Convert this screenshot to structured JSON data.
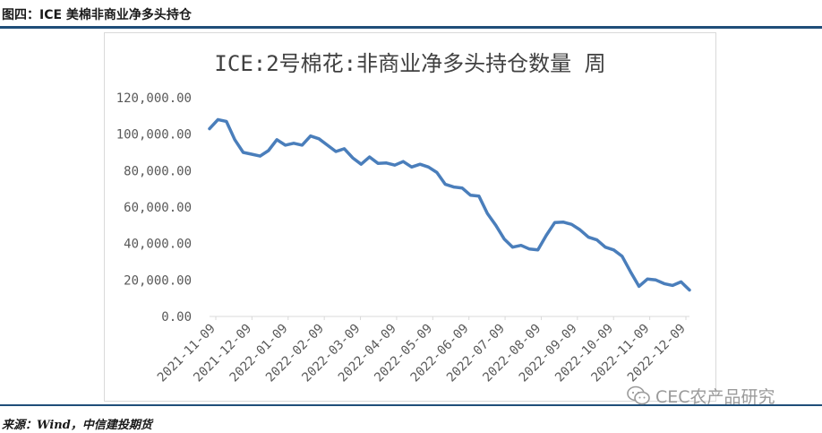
{
  "figure": {
    "caption": "图四：ICE 美棉非商业净多头持仓",
    "source": "来源：Wind，中信建投期货",
    "watermark": "CEC农产品研究",
    "watermark_icon": "wechat-icon"
  },
  "colors": {
    "line": "#4a7ebb",
    "rule": "#1f4e79",
    "axis": "#d9d9d9",
    "tick_text": "#595959",
    "title_text": "#404040"
  },
  "chart_data": {
    "type": "line",
    "title": "ICE:2号棉花:非商业净多头持仓数量 周",
    "xlabel": "",
    "ylabel": "",
    "ylim": [
      0,
      120000
    ],
    "yticks": [
      0,
      20000,
      40000,
      60000,
      80000,
      100000,
      120000
    ],
    "ytick_labels": [
      "0.00",
      "20,000.00",
      "40,000.00",
      "60,000.00",
      "80,000.00",
      "100,000.00",
      "120,000.00"
    ],
    "grid": false,
    "legend": "none",
    "xtick_labels": [
      "2021-11-09",
      "2021-12-09",
      "2022-01-09",
      "2022-02-09",
      "2022-03-09",
      "2022-04-09",
      "2022-05-09",
      "2022-06-09",
      "2022-07-09",
      "2022-08-09",
      "2022-09-09",
      "2022-10-09",
      "2022-11-09",
      "2022-12-09"
    ],
    "series": [
      {
        "values": [
          103000,
          108000,
          107000,
          97000,
          90000,
          89000,
          88000,
          91000,
          97000,
          94000,
          95000,
          94000,
          99000,
          97500,
          94000,
          90500,
          92000,
          87000,
          83500,
          87500,
          84000,
          84200,
          83000,
          85000,
          82000,
          83500,
          82000,
          79000,
          72500,
          71000,
          70500,
          66500,
          66000,
          56500,
          50000,
          42500,
          38000,
          39000,
          37000,
          36500,
          44500,
          51500,
          51800,
          50500,
          47500,
          43500,
          42000,
          38000,
          36500,
          33000,
          24500,
          16500,
          20500,
          20000,
          18000,
          17000,
          19000,
          14500
        ]
      }
    ]
  }
}
